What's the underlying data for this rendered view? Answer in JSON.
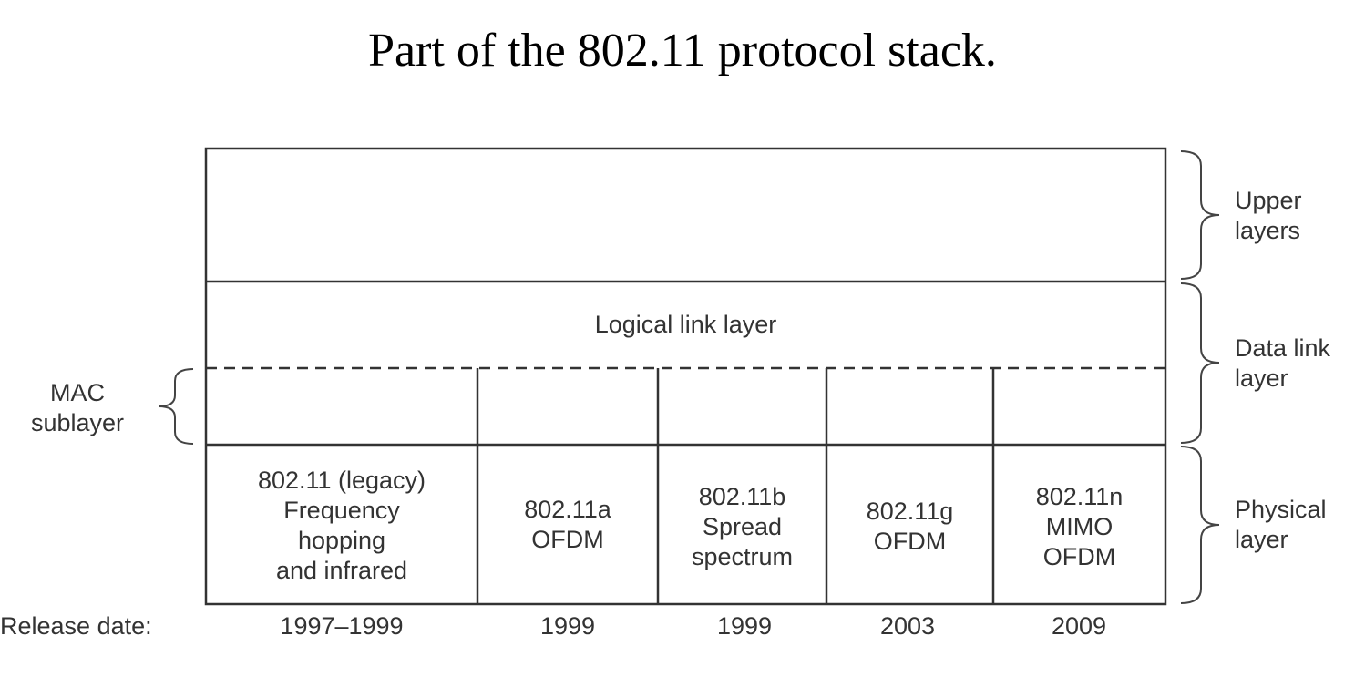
{
  "title": "Part of the 802.11 protocol stack.",
  "logical_link_label": "Logical link layer",
  "side_labels": {
    "upper": [
      "Upper",
      "layers"
    ],
    "data_link": [
      "Data link",
      "layer"
    ],
    "physical": [
      "Physical",
      "layer"
    ],
    "mac": [
      "MAC",
      "sublayer"
    ]
  },
  "physical_standards": [
    {
      "lines": [
        "802.11 (legacy)",
        "Frequency",
        "hopping",
        "and infrared"
      ],
      "release": "1997–1999"
    },
    {
      "lines": [
        "802.11a",
        "OFDM"
      ],
      "release": "1999"
    },
    {
      "lines": [
        "802.11b",
        "Spread",
        "spectrum"
      ],
      "release": "1999"
    },
    {
      "lines": [
        "802.11g",
        "OFDM"
      ],
      "release": "2003"
    },
    {
      "lines": [
        "802.11n",
        "MIMO",
        "OFDM"
      ],
      "release": "2009"
    }
  ],
  "release_label": "Release date:"
}
